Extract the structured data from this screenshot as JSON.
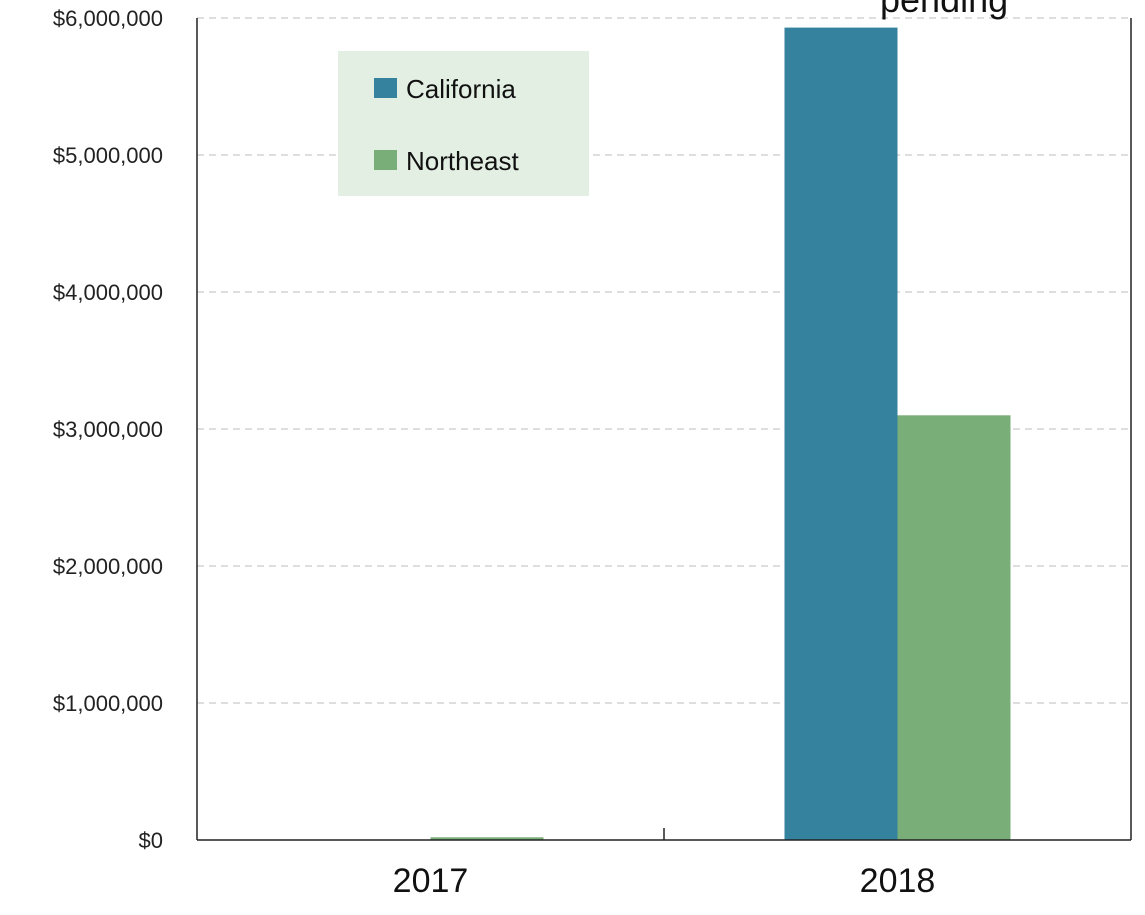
{
  "chart_data": {
    "type": "bar",
    "title_fragment": "pending",
    "categories": [
      "2017",
      "2018"
    ],
    "series": [
      {
        "name": "California",
        "color": "#35829e",
        "values": [
          0,
          5930000
        ]
      },
      {
        "name": "Northeast",
        "color": "#79ae79",
        "values": [
          20000,
          3100000
        ]
      }
    ],
    "ylim": [
      0,
      6000000
    ],
    "y_ticks": [
      "$0",
      "$1,000,000",
      "$2,000,000",
      "$3,000,000",
      "$4,000,000",
      "$5,000,000",
      "$6,000,000"
    ],
    "y_tick_values": [
      0,
      1000000,
      2000000,
      3000000,
      4000000,
      5000000,
      6000000
    ],
    "grid": true,
    "legend_position": "top-left",
    "legend_background": "#e3efe3"
  }
}
